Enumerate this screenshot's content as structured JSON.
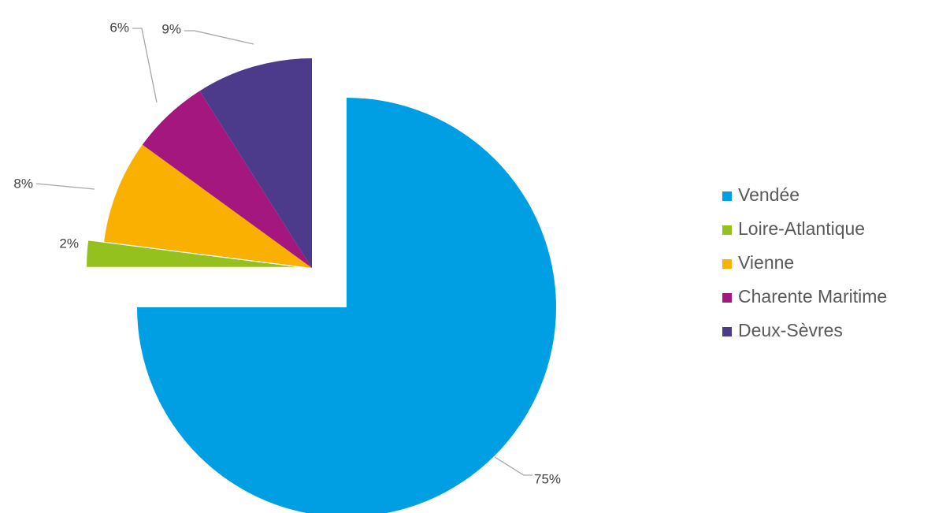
{
  "chart_data": {
    "type": "pie",
    "exploded": true,
    "start_angle_deg": 0,
    "direction": "clockwise",
    "legend_position": "right",
    "categories": [
      "Vendée",
      "Loire-Atlantique",
      "Vienne",
      "Charente Maritime",
      "Deux-Sèvres"
    ],
    "values": [
      75,
      2,
      8,
      6,
      9
    ],
    "data_labels": [
      "75%",
      "2%",
      "8%",
      "6%",
      "9%"
    ],
    "colors": [
      "#009fe3",
      "#95c11f",
      "#f9b000",
      "#a3177f",
      "#4c3b8b"
    ]
  }
}
